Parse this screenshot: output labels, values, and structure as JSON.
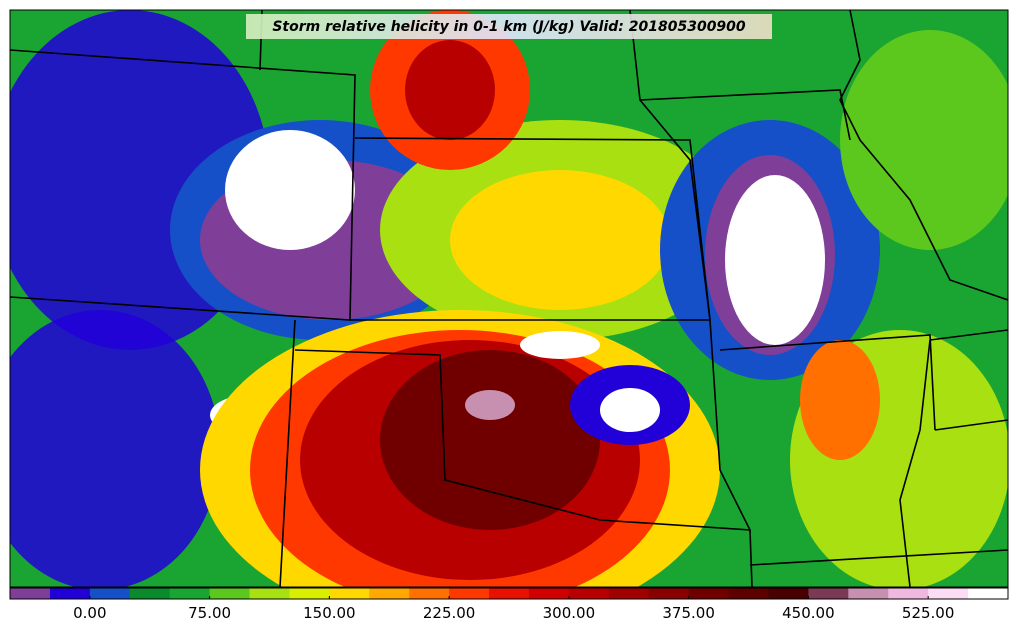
{
  "title": "Storm relative helicity in 0-1 km (J/kg) Valid: 201805300900",
  "colorbar": {
    "xlim": [
      -50,
      575
    ],
    "colors": [
      "#7f3f98",
      "#2200d8",
      "#1550c8",
      "#0a8a2a",
      "#1aa532",
      "#5cc81e",
      "#a8e012",
      "#d8ef00",
      "#ffd800",
      "#ffa800",
      "#ff7000",
      "#ff3800",
      "#e81000",
      "#d00000",
      "#b80000",
      "#a00000",
      "#880000",
      "#700000",
      "#5c0000",
      "#480000",
      "#7a3a55",
      "#c890b0",
      "#f0b8e0",
      "#fcdcf4",
      "#ffffff"
    ],
    "xticks": [
      {
        "value": 0,
        "label": "0.00"
      },
      {
        "value": 75,
        "label": "75.00"
      },
      {
        "value": 150,
        "label": "150.00"
      },
      {
        "value": 225,
        "label": "225.00"
      },
      {
        "value": 300,
        "label": "300.00"
      },
      {
        "value": 375,
        "label": "375.00"
      },
      {
        "value": 450,
        "label": "450.00"
      },
      {
        "value": 525,
        "label": "525.00"
      }
    ]
  }
}
